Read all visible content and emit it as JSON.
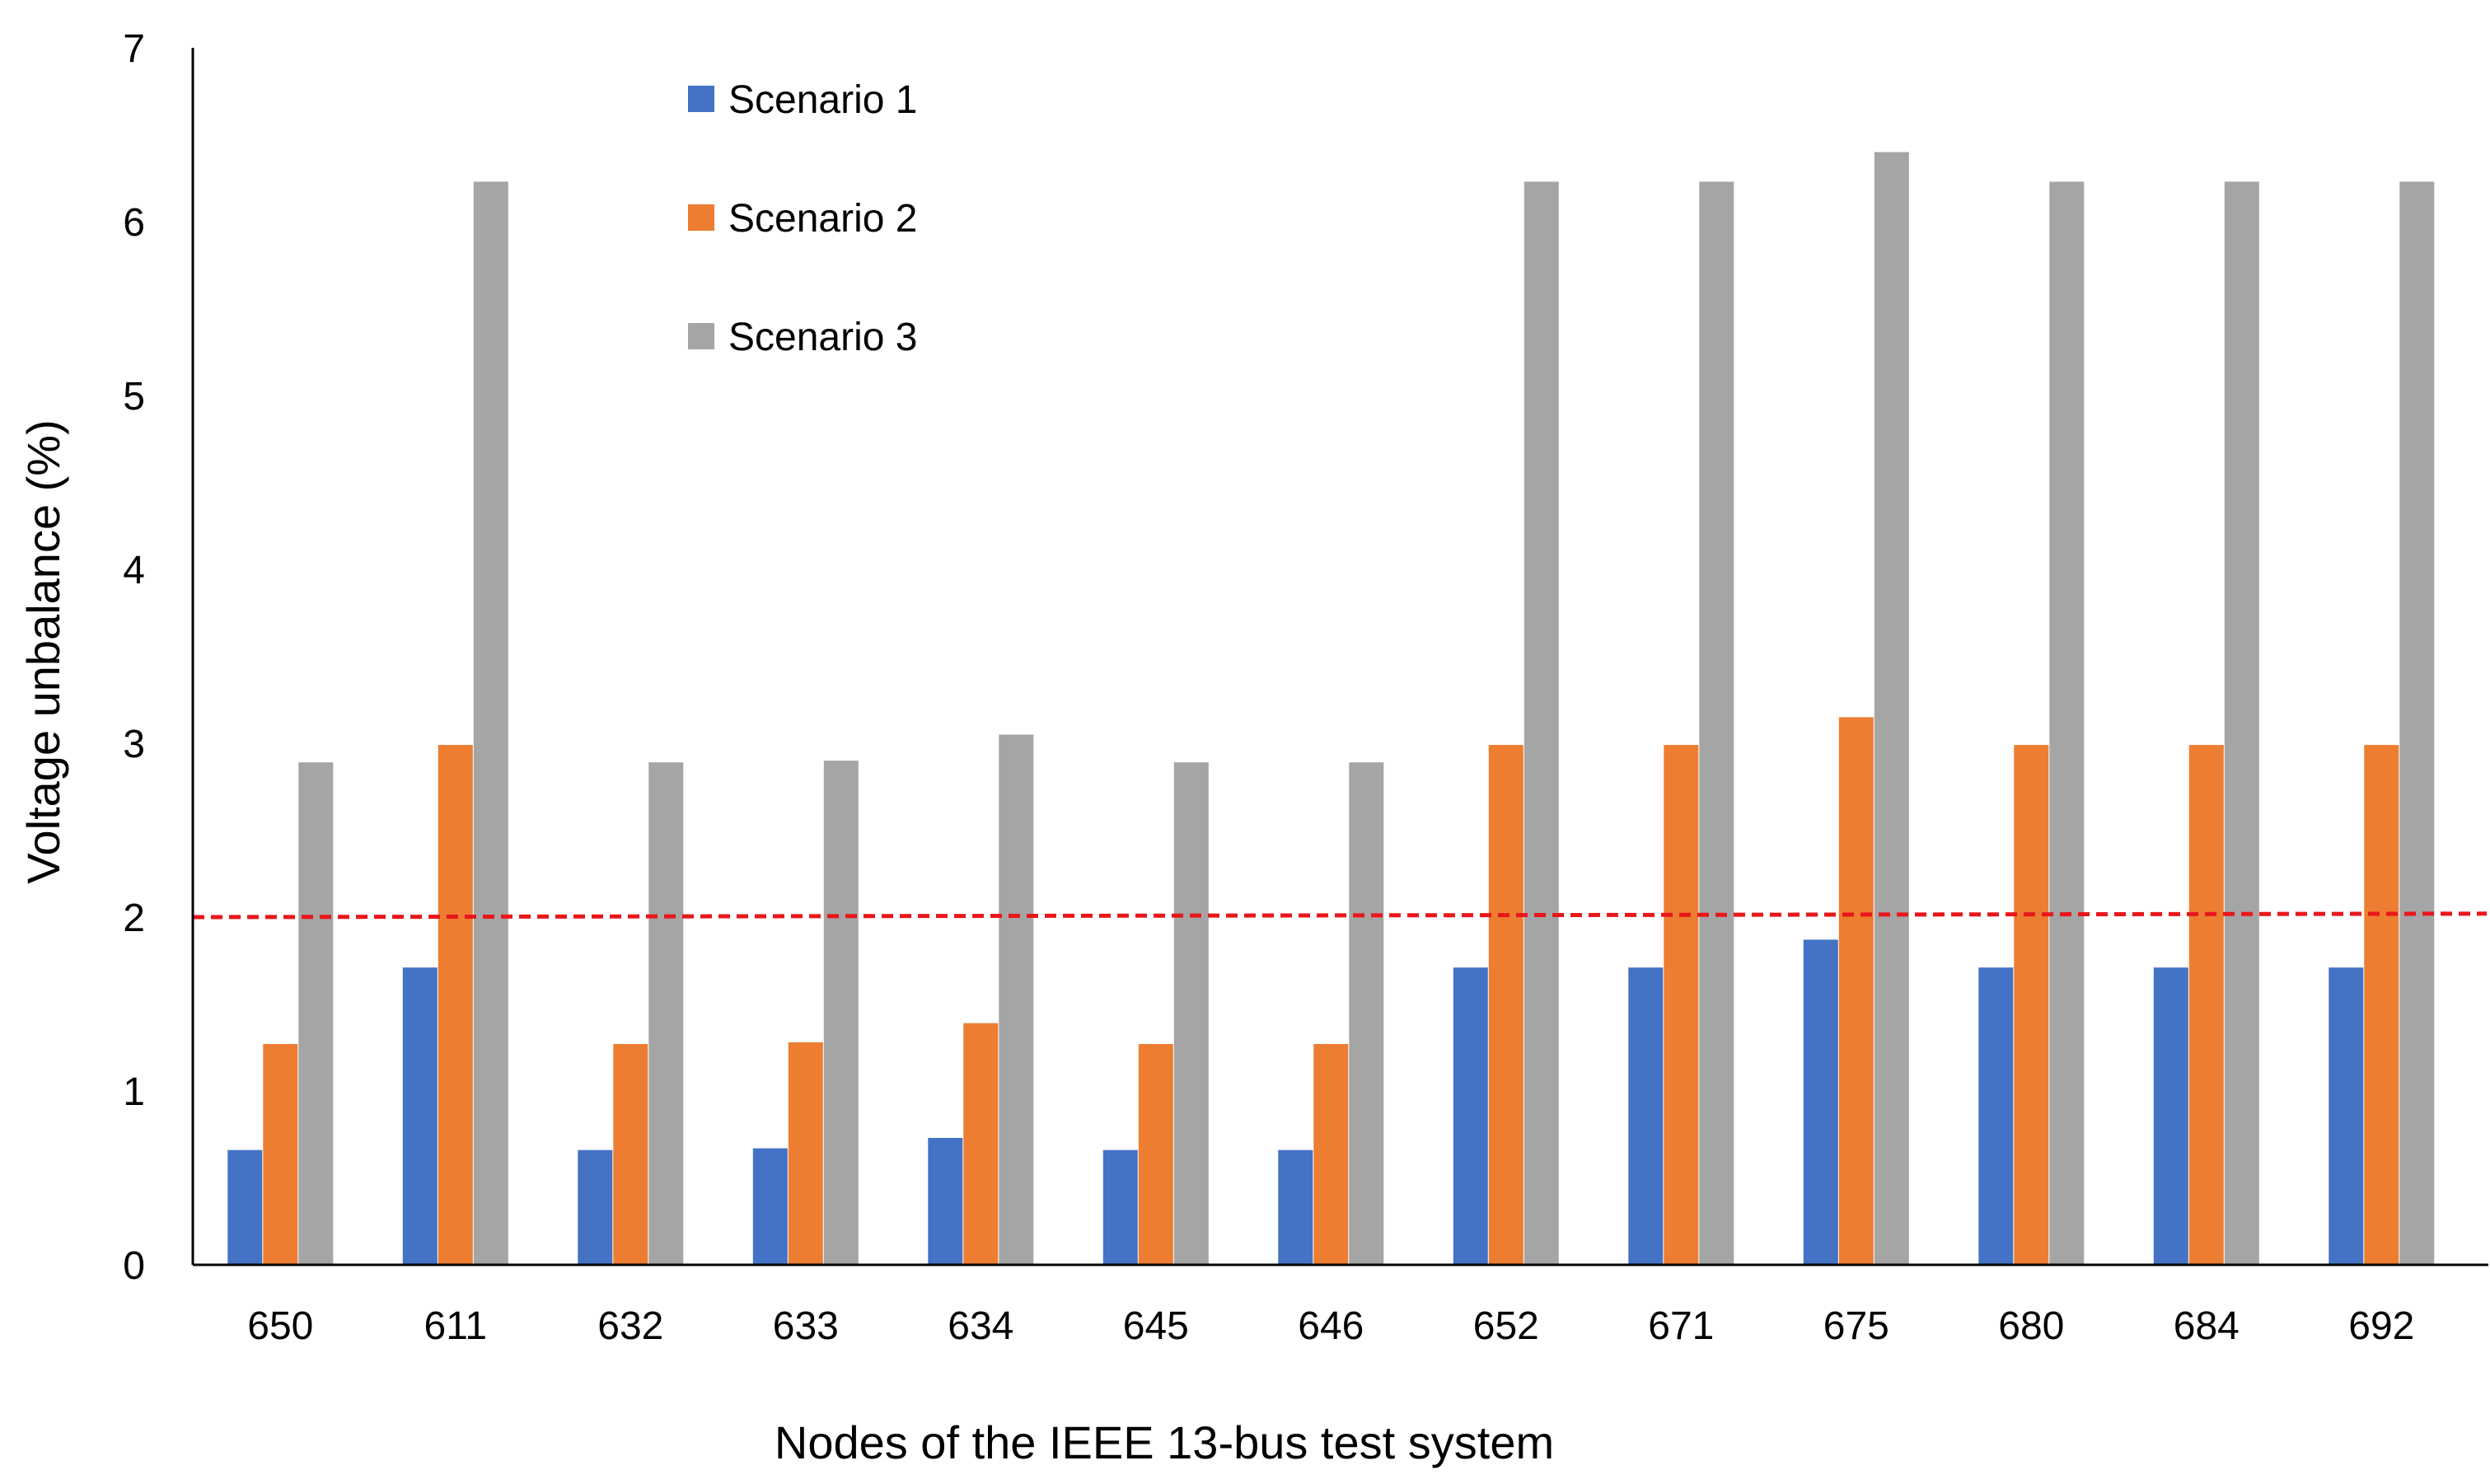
{
  "chart_data": {
    "type": "bar",
    "title": "",
    "xlabel": "Nodes of the IEEE 13-bus test system",
    "ylabel": "Voltage unbalance (%)",
    "ylim": [
      0,
      7
    ],
    "yticks": [
      "0",
      "1",
      "2",
      "3",
      "4",
      "5",
      "6",
      "7"
    ],
    "grid": false,
    "legend_position": "top-center",
    "categories": [
      "650",
      "611",
      "632",
      "633",
      "634",
      "645",
      "646",
      "652",
      "671",
      "675",
      "680",
      "684",
      "692"
    ],
    "series": [
      {
        "name": "Scenario 1",
        "color": "#4472C4",
        "values": [
          0.66,
          1.71,
          0.66,
          0.67,
          0.73,
          0.66,
          0.66,
          1.71,
          1.71,
          1.87,
          1.71,
          1.71,
          1.71
        ]
      },
      {
        "name": "Scenario 2",
        "color": "#ED7D31",
        "values": [
          1.27,
          2.99,
          1.27,
          1.28,
          1.39,
          1.27,
          1.27,
          2.99,
          2.99,
          3.15,
          2.99,
          2.99,
          2.99
        ]
      },
      {
        "name": "Scenario 3",
        "color": "#A5A5A5",
        "values": [
          2.89,
          6.23,
          2.89,
          2.9,
          3.05,
          2.89,
          2.89,
          6.23,
          6.23,
          6.4,
          6.23,
          6.23,
          6.23
        ]
      }
    ],
    "reference_line": {
      "value": 2,
      "value_end": 2.02,
      "color": "#E8171C",
      "style": "dashed"
    },
    "axis_color": "#000000"
  }
}
